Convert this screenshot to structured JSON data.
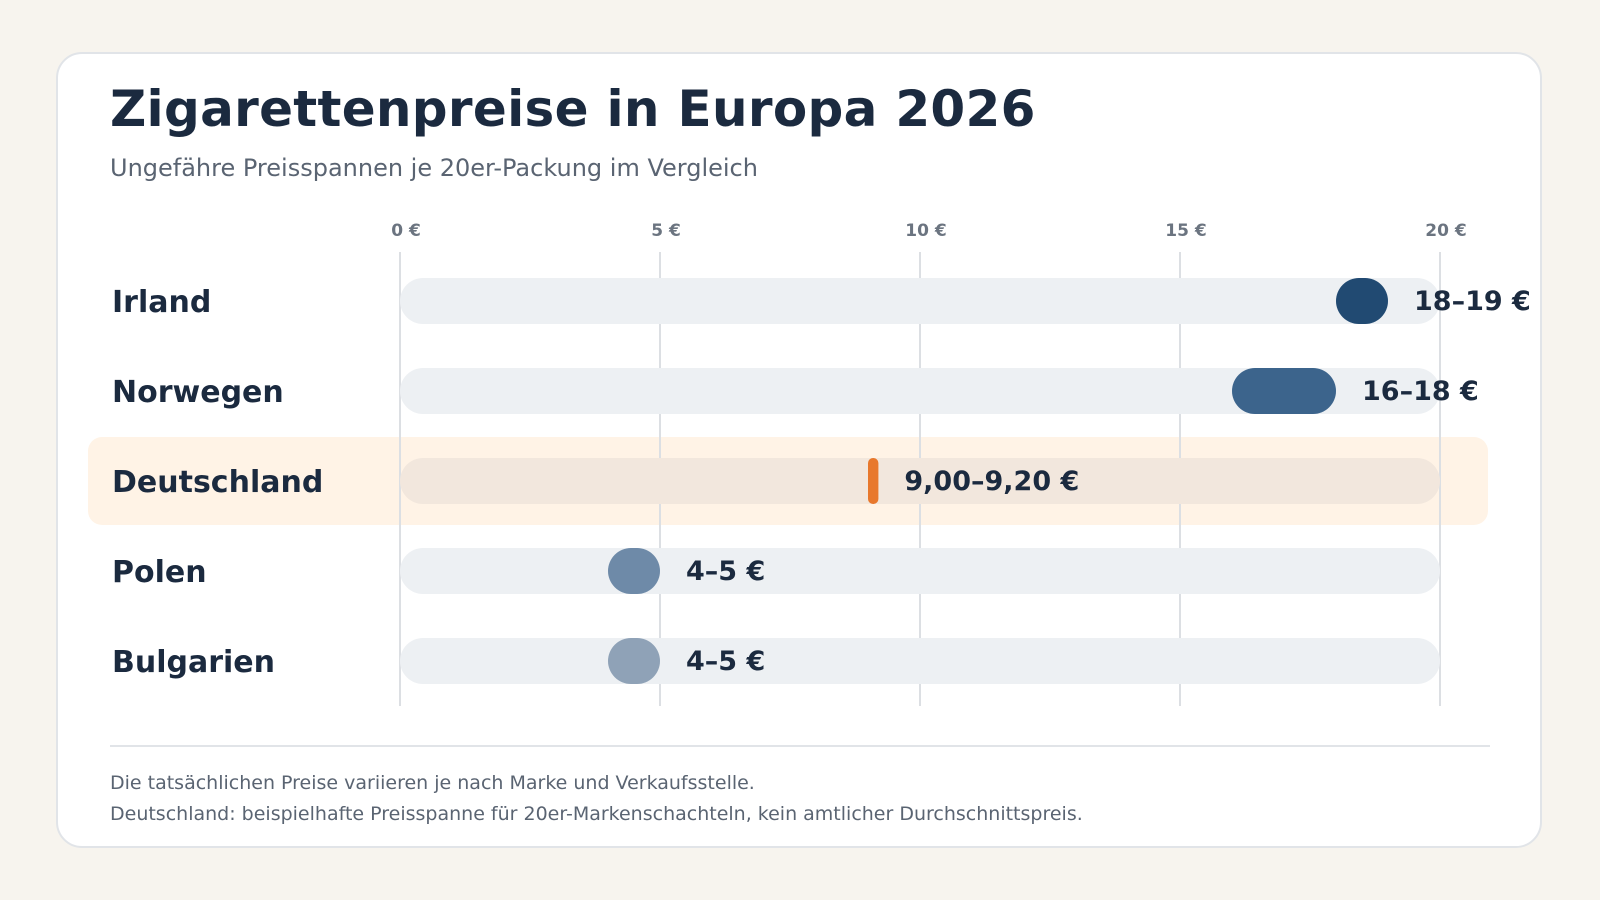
{
  "title": "Zigarettenpreise in Europa 2026",
  "subtitle": "Ungefähre Preisspannen je 20er-Packung im Vergleich",
  "notes": [
    "Die tatsächlichen Preise variieren je nach Marke und Verkaufsstelle.",
    "Deutschland: beispielhafte Preisspanne für 20er-Markenschachteln, kein amtlicher Durchschnittspreis."
  ],
  "chart_data": {
    "type": "bar",
    "subtype": "range",
    "title": "Zigarettenpreise in Europa 2026",
    "subtitle": "Ungefähre Preisspannen je 20er-Packung im Vergleich",
    "xlabel": "",
    "ylabel": "",
    "xlim": [
      0,
      20
    ],
    "ticks": [
      {
        "value": 0,
        "label": "0 €"
      },
      {
        "value": 5,
        "label": "5 €"
      },
      {
        "value": 10,
        "label": "10 €"
      },
      {
        "value": 15,
        "label": "15 €"
      },
      {
        "value": 20,
        "label": "20 €"
      }
    ],
    "grid": true,
    "categories": [
      "Irland",
      "Norwegen",
      "Deutschland",
      "Polen",
      "Bulgarien"
    ],
    "rows": [
      {
        "country": "Irland",
        "min": 18,
        "max": 19,
        "label": "18–19 €",
        "color": "#214a72",
        "highlight": false
      },
      {
        "country": "Norwegen",
        "min": 16,
        "max": 18,
        "label": "16–18 €",
        "color": "#3c648c",
        "highlight": false
      },
      {
        "country": "Deutschland",
        "min": 9.0,
        "max": 9.2,
        "label": "9,00–9,20 €",
        "color": "#e8782c",
        "highlight": true
      },
      {
        "country": "Polen",
        "min": 4,
        "max": 5,
        "label": "4–5 €",
        "color": "#6e8aa8",
        "highlight": false
      },
      {
        "country": "Bulgarien",
        "min": 4,
        "max": 5,
        "label": "4–5 €",
        "color": "#8fa2b7",
        "highlight": false
      }
    ],
    "colors": {
      "track": "#edf0f3",
      "highlight_track": "#f2e7dd",
      "highlight_band": "#fff3e6",
      "highlight_text": "#c2601e",
      "grid": "#dcdfe3"
    }
  }
}
